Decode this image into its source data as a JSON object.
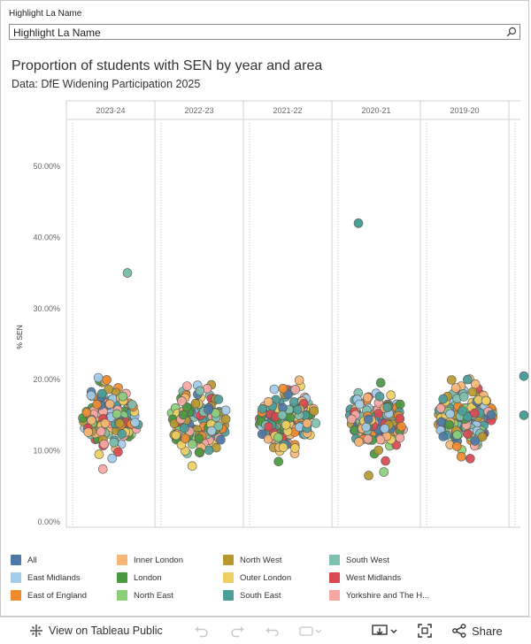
{
  "filter": {
    "label": "Highlight La Name",
    "placeholder": "Highlight La Name"
  },
  "header": {
    "title": "Proportion of students with SEN by year and area",
    "subtitle": "Data: DfE Widening Participation 2025"
  },
  "chart_data": {
    "type": "scatter",
    "title": "Proportion of students with SEN by year and area",
    "subtitle": "Data: DfE Widening Participation 2025",
    "ylabel": "% SEN",
    "ylim": [
      0,
      0.55
    ],
    "yticks": [
      {
        "value": 0.0,
        "label": "0.00%"
      },
      {
        "value": 0.1,
        "label": "10.00%"
      },
      {
        "value": 0.2,
        "label": "20.00%"
      },
      {
        "value": 0.3,
        "label": "30.00%"
      },
      {
        "value": 0.4,
        "label": "40.00%"
      },
      {
        "value": 0.5,
        "label": "50.00%"
      }
    ],
    "columns": [
      "2023-24",
      "2022-23",
      "2021-22",
      "2020-21",
      "2019-20"
    ],
    "grid": false,
    "legend_placement": "bottom",
    "series": [
      {
        "name": "All",
        "color": "#4e79a7"
      },
      {
        "name": "Inner London",
        "color": "#f7b676"
      },
      {
        "name": "North West",
        "color": "#b7982f"
      },
      {
        "name": "South West",
        "color": "#7fbfad"
      },
      {
        "name": "East Midlands",
        "color": "#a3cbea"
      },
      {
        "name": "London",
        "color": "#4a9840"
      },
      {
        "name": "Outer London",
        "color": "#f0cf62"
      },
      {
        "name": "West Midlands",
        "color": "#d9484f"
      },
      {
        "name": "East of England",
        "color": "#f08b2c"
      },
      {
        "name": "North East",
        "color": "#8ad07b"
      },
      {
        "name": "South East",
        "color": "#4b9e99"
      },
      {
        "name": "Yorkshire and The H...",
        "color": "#f7a7a3"
      }
    ],
    "outliers": [
      {
        "column": "2023-24",
        "series": "South West",
        "y": 0.35
      },
      {
        "column": "2020-21",
        "series": "South East",
        "y": 0.42
      }
    ]
  },
  "toolbar": {
    "view_label": "View on Tableau Public",
    "share_label": "Share"
  }
}
